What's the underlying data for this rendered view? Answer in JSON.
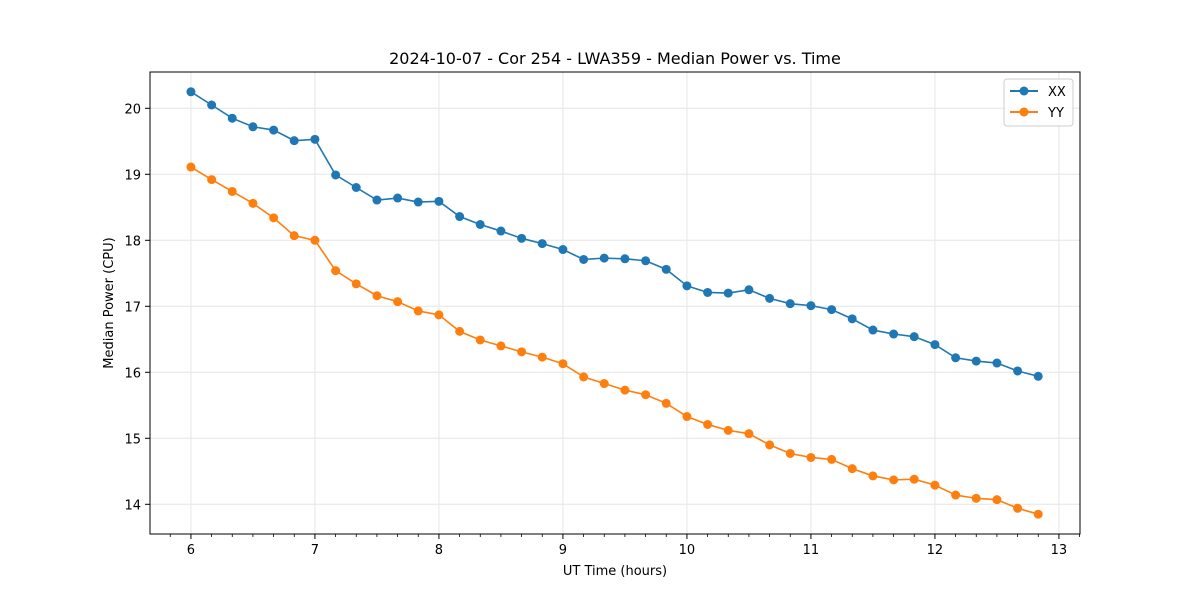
{
  "chart_data": {
    "type": "line",
    "title": "2024-10-07 - Cor 254 - LWA359 - Median Power vs. Time",
    "xlabel": "UT Time (hours)",
    "ylabel": "Median Power (CPU)",
    "xlim": [
      5.67,
      13.17
    ],
    "ylim": [
      13.55,
      20.55
    ],
    "xticks": [
      6,
      7,
      8,
      9,
      10,
      11,
      12,
      13
    ],
    "yticks": [
      14,
      15,
      16,
      17,
      18,
      19,
      20
    ],
    "grid": true,
    "legend_position": "top-right",
    "x": [
      6.0,
      6.167,
      6.333,
      6.5,
      6.667,
      6.833,
      7.0,
      7.167,
      7.333,
      7.5,
      7.667,
      7.833,
      8.0,
      8.167,
      8.333,
      8.5,
      8.667,
      8.833,
      9.0,
      9.167,
      9.333,
      9.5,
      9.667,
      9.833,
      10.0,
      10.167,
      10.333,
      10.5,
      10.667,
      10.833,
      11.0,
      11.167,
      11.333,
      11.5,
      11.667,
      11.833,
      12.0,
      12.167,
      12.333,
      12.5,
      12.667,
      12.833
    ],
    "series": [
      {
        "name": "XX",
        "color": "#1f77b4",
        "values": [
          20.25,
          20.05,
          19.85,
          19.72,
          19.67,
          19.51,
          19.53,
          18.99,
          18.8,
          18.61,
          18.64,
          18.58,
          18.59,
          18.36,
          18.24,
          18.14,
          18.03,
          17.95,
          17.86,
          17.71,
          17.73,
          17.72,
          17.69,
          17.56,
          17.31,
          17.21,
          17.2,
          17.25,
          17.12,
          17.04,
          17.01,
          16.95,
          16.81,
          16.64,
          16.58,
          16.54,
          16.42,
          16.22,
          16.17,
          16.14,
          16.02,
          15.94
        ]
      },
      {
        "name": "YY",
        "color": "#ff7f0e",
        "values": [
          19.11,
          18.92,
          18.74,
          18.56,
          18.34,
          18.07,
          18.0,
          17.54,
          17.34,
          17.16,
          17.07,
          16.93,
          16.87,
          16.62,
          16.49,
          16.4,
          16.31,
          16.23,
          16.13,
          15.93,
          15.83,
          15.73,
          15.66,
          15.53,
          15.33,
          15.21,
          15.12,
          15.07,
          14.9,
          14.77,
          14.71,
          14.68,
          14.54,
          14.43,
          14.37,
          14.38,
          14.29,
          14.14,
          14.09,
          14.07,
          13.94,
          13.85
        ]
      }
    ]
  }
}
